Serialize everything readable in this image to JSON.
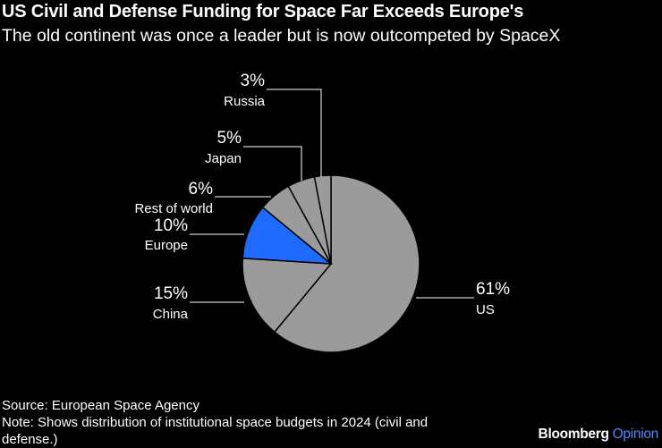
{
  "title": "US Civil and Defense Funding for Space Far Exceeds Europe's",
  "subtitle": "The old continent was once a leader but is now outcompeted by SpaceX",
  "chart_data": {
    "type": "pie",
    "title": "US Civil and Defense Funding for Space Far Exceeds Europe's",
    "subtitle": "The old continent was once a leader but is now outcompeted by SpaceX",
    "unit": "%",
    "slices": [
      {
        "label": "US",
        "value": 61,
        "value_label": "61%",
        "color": "#9b9b9b"
      },
      {
        "label": "China",
        "value": 15,
        "value_label": "15%",
        "color": "#9b9b9b"
      },
      {
        "label": "Europe",
        "value": 10,
        "value_label": "10%",
        "color": "#1f6bff"
      },
      {
        "label": "Rest of world",
        "value": 6,
        "value_label": "6%",
        "color": "#9b9b9b"
      },
      {
        "label": "Japan",
        "value": 5,
        "value_label": "5%",
        "color": "#9b9b9b"
      },
      {
        "label": "Russia",
        "value": 3,
        "value_label": "3%",
        "color": "#9b9b9b"
      }
    ],
    "start": "12 o'clock",
    "direction": "clockwise"
  },
  "footer": {
    "source": "Source: European Space Agency",
    "note": "Note: Shows distribution of institutional space budgets in 2024 (civil and defense.)"
  },
  "logo": {
    "brand": "Bloomberg",
    "suffix": "Opinion"
  }
}
